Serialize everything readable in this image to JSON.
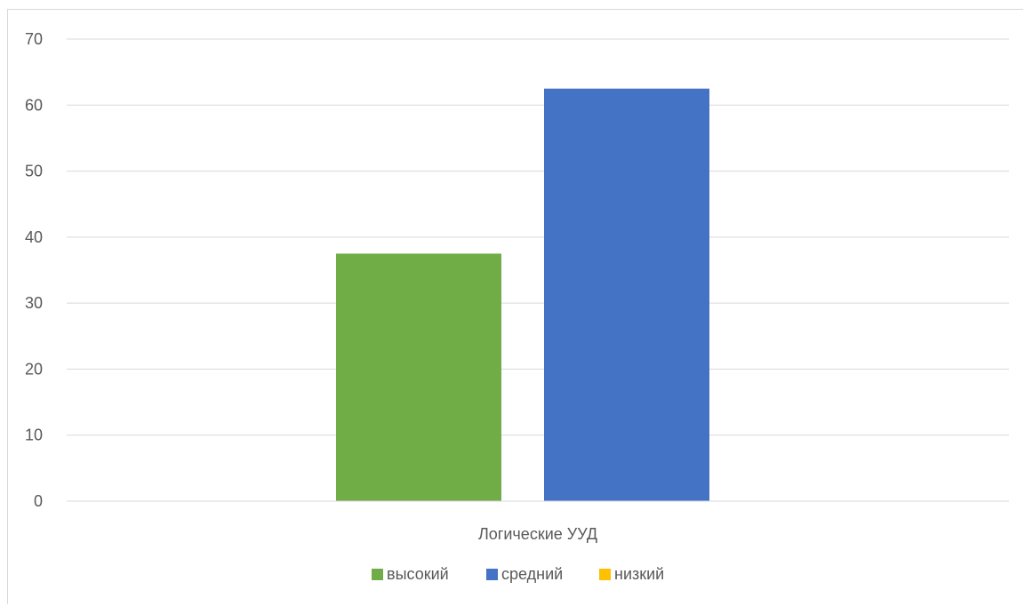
{
  "chart_data": {
    "type": "bar",
    "categories": [
      "Логические УУД"
    ],
    "series": [
      {
        "name": "высокий",
        "values": [
          37.5
        ],
        "color": "#70ad47"
      },
      {
        "name": "средний",
        "values": [
          62.5
        ],
        "color": "#4472c4"
      },
      {
        "name": "низкий",
        "values": [
          0
        ],
        "color": "#ffc000"
      }
    ],
    "y_ticks": [
      "0",
      "10",
      "20",
      "30",
      "40",
      "50",
      "60",
      "70"
    ],
    "ylim": [
      0,
      70
    ],
    "grid": true,
    "legend": "bottom"
  }
}
